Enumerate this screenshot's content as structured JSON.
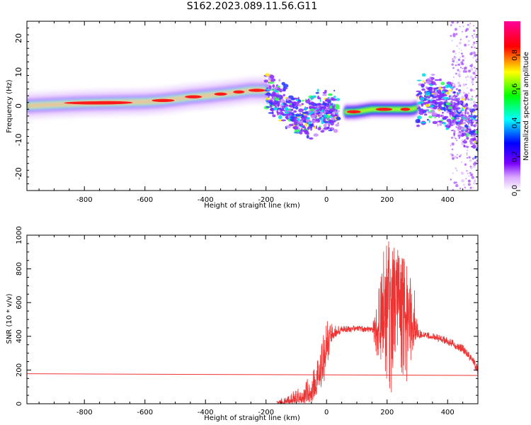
{
  "page": {
    "title": "S162.2023.089.11.56.G11"
  },
  "chart_data": [
    {
      "type": "heatmap",
      "title": "S162.2023.089.11.56.G11",
      "xlabel": "Height of straight line (km)",
      "ylabel": "Frequency (Hz)",
      "xlim": [
        -990,
        500
      ],
      "ylim": [
        -25,
        25
      ],
      "x_ticks": [
        "-800",
        "-600",
        "-400",
        "-200",
        "0",
        "200",
        "400"
      ],
      "y_ticks": [
        "20",
        "10",
        "0",
        "-10",
        "-20"
      ],
      "colorbar": {
        "label": "Normalized spectral amplitude",
        "ticks": [
          "0.0",
          "0.2",
          "0.4",
          "0.6",
          "0.8"
        ],
        "range": [
          0,
          1
        ],
        "colors": [
          "#ffffff",
          "#7a00ff",
          "#0000ff",
          "#00ffff",
          "#00ff00",
          "#ffff00",
          "#ff0000",
          "#ff0099"
        ]
      },
      "ridge": {
        "x": [
          -990,
          -900,
          -800,
          -700,
          -600,
          -550,
          -500,
          -450,
          -400,
          -350,
          -300,
          -250,
          -200,
          -180,
          -150,
          -120,
          -100,
          -80,
          -60,
          -40,
          -20,
          0,
          20,
          40,
          60,
          80,
          100,
          150,
          200,
          250,
          280,
          300,
          320,
          340,
          360,
          380,
          400,
          420,
          440,
          460,
          480,
          500
        ],
        "frequency_hz": [
          0,
          0.4,
          0.8,
          1.0,
          1.2,
          1.5,
          2.0,
          2.6,
          3.0,
          3.5,
          4.0,
          4.6,
          4.6,
          3.5,
          1.0,
          -1.5,
          -3.0,
          -3.5,
          -3.0,
          -2.5,
          -2.0,
          -1.5,
          -2.0,
          -1.7,
          -1.8,
          -1.8,
          -1.7,
          -1.0,
          -1.0,
          -1.0,
          -1.0,
          -0.5,
          1.0,
          2.5,
          1.5,
          0.5,
          -0.5,
          -1.5,
          -2.5,
          -4.0,
          -6.0,
          -8.0
        ]
      }
    },
    {
      "type": "line",
      "xlabel": "Height of straight line (km)",
      "ylabel": "SNR (10 * v/v)",
      "xlim": [
        -990,
        500
      ],
      "ylim": [
        0,
        1000
      ],
      "x_ticks": [
        "-800",
        "-600",
        "-400",
        "-200",
        "0",
        "200",
        "400"
      ],
      "y_ticks": [
        "1000",
        "800",
        "600",
        "400",
        "200",
        "0"
      ],
      "color": "#ee3333",
      "series": [
        {
          "x": [
            -990,
            500
          ],
          "values": [
            178,
            168
          ]
        },
        {
          "x": [
            -165,
            -120,
            -80,
            -50,
            -30,
            -15,
            -5,
            5,
            20,
            50,
            100,
            150,
            170,
            190,
            210,
            230,
            260,
            290,
            300,
            320,
            350,
            400,
            450,
            480,
            500
          ],
          "values": [
            5,
            10,
            30,
            70,
            120,
            200,
            280,
            360,
            420,
            440,
            450,
            445,
            440,
            420,
            600,
            700,
            500,
            420,
            410,
            405,
            395,
            370,
            320,
            260,
            200
          ],
          "envelope_max": [
            15,
            60,
            120,
            180,
            260,
            380,
            480,
            500,
            470,
            460,
            465,
            460,
            700,
            1000,
            960,
            930,
            900,
            700,
            480,
            430,
            420,
            395,
            350,
            290,
            230
          ],
          "envelope_min": [
            0,
            0,
            0,
            10,
            40,
            80,
            150,
            260,
            380,
            420,
            430,
            420,
            250,
            80,
            20,
            20,
            80,
            250,
            390,
            390,
            380,
            350,
            300,
            240,
            170
          ]
        }
      ]
    }
  ]
}
